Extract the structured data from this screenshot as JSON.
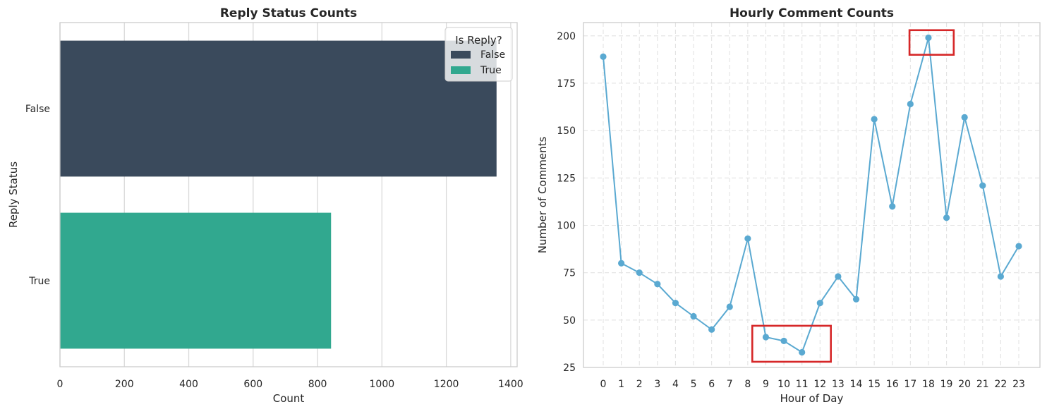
{
  "chart_data": [
    {
      "type": "bar",
      "orientation": "horizontal",
      "title": "Reply Status Counts",
      "xlabel": "Count",
      "ylabel": "Reply Status",
      "categories": [
        "False",
        "True"
      ],
      "values": [
        1356,
        842
      ],
      "xlim": [
        0,
        1420
      ],
      "xticks": [
        0,
        200,
        400,
        600,
        800,
        1000,
        1200,
        1400
      ],
      "colors": [
        "#3a4a5c",
        "#31a88f"
      ],
      "grid": true,
      "legend": {
        "title": "Is Reply?",
        "placement": "top-right",
        "entries": [
          {
            "label": "False",
            "color": "#3a4a5c"
          },
          {
            "label": "True",
            "color": "#31a88f"
          }
        ]
      }
    },
    {
      "type": "line",
      "title": "Hourly Comment Counts",
      "xlabel": "Hour of Day",
      "ylabel": "Number of Comments",
      "x": [
        0,
        1,
        2,
        3,
        4,
        5,
        6,
        7,
        8,
        9,
        10,
        11,
        12,
        13,
        14,
        15,
        16,
        17,
        18,
        19,
        20,
        21,
        22,
        23
      ],
      "series": [
        {
          "values": [
            189,
            80,
            75,
            69,
            59,
            52,
            45,
            57,
            93,
            41,
            39,
            33,
            59,
            73,
            61,
            156,
            110,
            164,
            199,
            104,
            157,
            121,
            73,
            89
          ],
          "color": "#5aa9d1"
        }
      ],
      "ylim": [
        25,
        207
      ],
      "yticks": [
        25,
        50,
        75,
        100,
        125,
        150,
        175,
        200
      ],
      "grid": true,
      "grid_style": "dashed",
      "highlights": [
        {
          "x_range": [
            8.25,
            12.6
          ],
          "y_range": [
            28,
            47
          ],
          "color": "#d62728"
        },
        {
          "x_range": [
            16.95,
            19.4
          ],
          "y_range": [
            190,
            203
          ],
          "color": "#d62728"
        }
      ]
    }
  ]
}
